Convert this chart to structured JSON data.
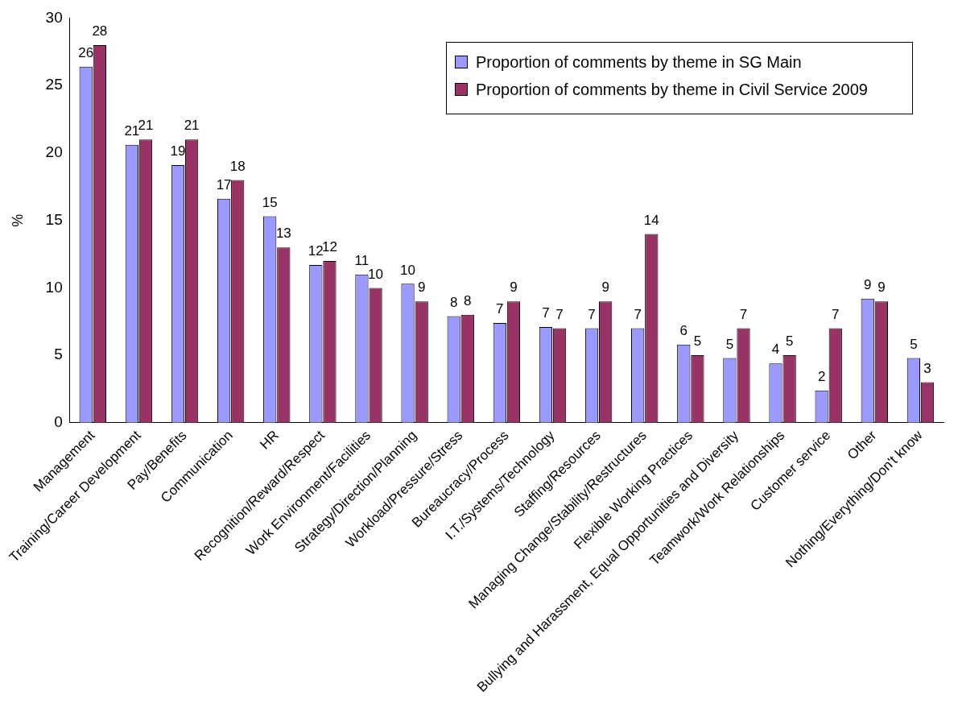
{
  "chart_data": {
    "type": "bar",
    "ylabel": "%",
    "categories": [
      "Management",
      "Training/Career Development",
      "Pay/Benefits",
      "Communication",
      "HR",
      "Recognition/Reward/Respect",
      "Work Environment/Facilities",
      "Strategy/Direction/Planning",
      "Workload/Pressure/Stress",
      "Bureaucracy/Process",
      "I.T./Systems/Technology",
      "Staffing/Resources",
      "Managing Change/Stability/Restructures",
      "Flexible Working Practices",
      "Bullying and Harassment, Equal Opportunities and Diversity",
      "Teamwork/Work Relationships",
      "Customer service",
      "Other",
      "Nothing/Everything/Don't know"
    ],
    "series": [
      {
        "name": "Proportion of comments by theme in SG Main",
        "color": "#9999ff",
        "values": [
          26.4,
          20.6,
          19.1,
          16.6,
          15.3,
          11.7,
          11,
          10.3,
          7.9,
          7.4,
          7.1,
          7,
          7,
          5.8,
          4.8,
          4.4,
          2.4,
          9.2,
          4.8
        ],
        "value_labels": [
          "26",
          "21",
          "19",
          "17",
          "15",
          "12",
          "11",
          "10",
          "8",
          "7",
          "7",
          "7",
          "7",
          "6",
          "5",
          "4",
          "2",
          "9",
          "5"
        ]
      },
      {
        "name": "Proportion of comments by theme in Civil Service 2009",
        "color": "#993366",
        "values": [
          28,
          21,
          21,
          18,
          13,
          12,
          10,
          9,
          8,
          9,
          7,
          9,
          14,
          5,
          7,
          5,
          7,
          9,
          3
        ],
        "value_labels": [
          "28",
          "21",
          "21",
          "18",
          "13",
          "12",
          "10",
          "9",
          "8",
          "9",
          "7",
          "9",
          "14",
          "5",
          "7",
          "5",
          "7",
          "9",
          "3"
        ]
      }
    ],
    "ylim": [
      0,
      30
    ],
    "yticks": [
      0,
      5,
      10,
      15,
      20,
      25,
      30
    ],
    "grid": false,
    "legend": "top right"
  }
}
